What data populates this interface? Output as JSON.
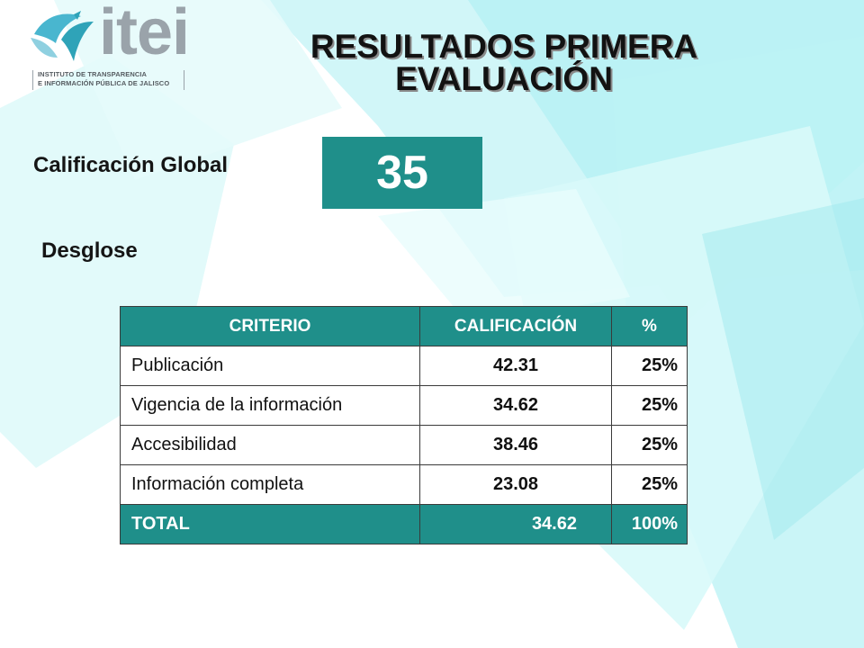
{
  "logo": {
    "wordmark": "itei",
    "subtitle_line1": "INSTITUTO DE TRANSPARENCIA",
    "subtitle_line2": "E INFORMACIÓN PÚBLICA DE JALISCO"
  },
  "header": {
    "title_line1": "RESULTADOS PRIMERA",
    "title_line2": "EVALUACIÓN"
  },
  "global_score": {
    "label": "Calificación Global",
    "value": "35"
  },
  "breakdown": {
    "label": "Desglose",
    "columns": [
      "CRITERIO",
      "CALIFICACIÓN",
      "%"
    ],
    "rows": [
      {
        "criterion": "Publicación",
        "score": "42.31",
        "percent": "25%"
      },
      {
        "criterion": "Vigencia de la información",
        "score": "34.62",
        "percent": "25%"
      },
      {
        "criterion": "Accesibilidad",
        "score": "38.46",
        "percent": "25%"
      },
      {
        "criterion": "Información completa",
        "score": "23.08",
        "percent": "25%"
      }
    ],
    "total": {
      "criterion": "TOTAL",
      "score": "34.62",
      "percent": "100%"
    }
  },
  "colors": {
    "accent": "#1f8f8a",
    "background_shapes": "#bdf3f5"
  }
}
